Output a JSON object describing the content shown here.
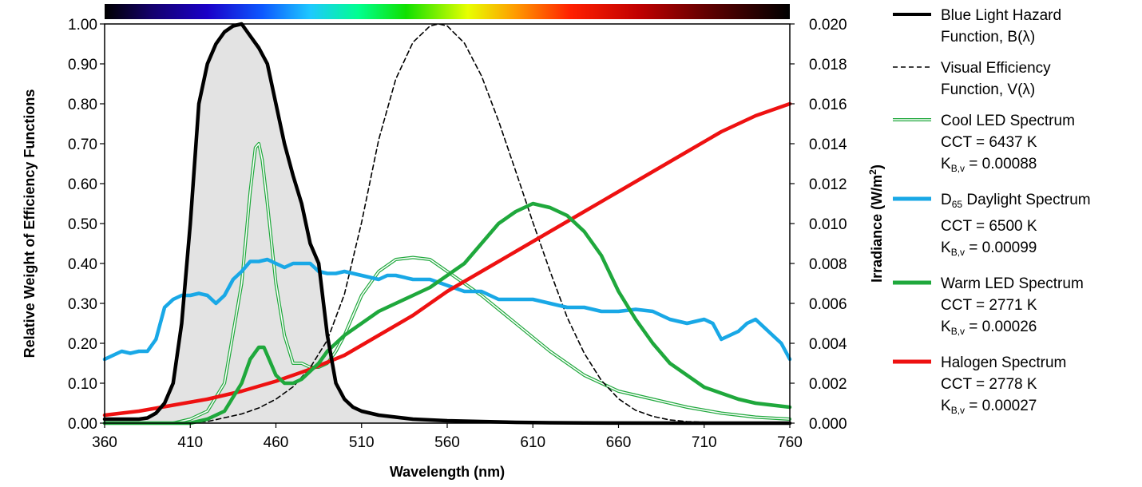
{
  "chart_data": {
    "type": "line",
    "xlabel": "Wavelength (nm)",
    "ylabel_left": "Relative Weight of Efficiency Functions",
    "ylabel_right_base": "Irradiance (W/m",
    "ylabel_right_sup": "2",
    "ylabel_right_end": ")",
    "xlim": [
      360,
      760
    ],
    "ylim_left": [
      0,
      1.0
    ],
    "ylim_right": [
      0,
      0.02
    ],
    "x_ticks": [
      "360",
      "410",
      "460",
      "510",
      "560",
      "610",
      "660",
      "710",
      "760"
    ],
    "y_left_ticks": [
      "0.00",
      "0.10",
      "0.20",
      "0.30",
      "0.40",
      "0.50",
      "0.60",
      "0.70",
      "0.80",
      "0.90",
      "1.00"
    ],
    "y_right_ticks": [
      "0.000",
      "0.002",
      "0.004",
      "0.006",
      "0.008",
      "0.010",
      "0.012",
      "0.014",
      "0.016",
      "0.018",
      "0.020"
    ],
    "grid": false,
    "legend_position": "right",
    "spectrum_bar": true,
    "series": [
      {
        "name": "Blue Light Hazard Function, B(λ)",
        "color": "#000000",
        "style": "solid-thick",
        "fill": "#e3e3e3",
        "x": [
          360,
          370,
          380,
          385,
          390,
          395,
          400,
          405,
          410,
          415,
          420,
          425,
          430,
          435,
          440,
          445,
          450,
          455,
          460,
          465,
          470,
          475,
          480,
          485,
          490,
          495,
          500,
          505,
          510,
          520,
          530,
          540,
          550,
          560,
          580,
          600,
          620,
          640,
          660,
          700,
          760
        ],
        "y": [
          0.01,
          0.01,
          0.01,
          0.013,
          0.025,
          0.05,
          0.1,
          0.25,
          0.5,
          0.8,
          0.9,
          0.95,
          0.98,
          0.995,
          1.0,
          0.97,
          0.94,
          0.9,
          0.8,
          0.7,
          0.62,
          0.55,
          0.45,
          0.4,
          0.22,
          0.1,
          0.06,
          0.04,
          0.03,
          0.02,
          0.015,
          0.01,
          0.008,
          0.006,
          0.004,
          0.002,
          0.001,
          0.0005,
          0.0003,
          0.0001,
          0.0
        ]
      },
      {
        "name": "Visual Efficiency Function, V(λ)",
        "color": "#000000",
        "style": "dashed",
        "x": [
          360,
          380,
          400,
          420,
          440,
          450,
          460,
          470,
          480,
          490,
          500,
          510,
          520,
          530,
          540,
          550,
          555,
          560,
          570,
          580,
          590,
          600,
          610,
          620,
          630,
          640,
          650,
          660,
          670,
          680,
          690,
          700,
          720,
          760
        ],
        "y": [
          0.0,
          0.0,
          0.0,
          0.004,
          0.023,
          0.038,
          0.06,
          0.091,
          0.139,
          0.208,
          0.323,
          0.503,
          0.71,
          0.862,
          0.954,
          0.995,
          1.0,
          0.995,
          0.952,
          0.87,
          0.757,
          0.631,
          0.503,
          0.381,
          0.265,
          0.175,
          0.107,
          0.061,
          0.032,
          0.017,
          0.008,
          0.004,
          0.001,
          0.0
        ]
      },
      {
        "name": "Cool LED Spectrum",
        "info1": "CCT = 6437 K",
        "info2_base": "K",
        "info2_sub": "B,v",
        "info2_end": " = 0.00088",
        "color": "#1fa83c",
        "style": "double",
        "x": [
          360,
          400,
          410,
          420,
          430,
          440,
          445,
          448,
          450,
          452,
          455,
          460,
          465,
          470,
          475,
          480,
          485,
          490,
          495,
          500,
          505,
          510,
          515,
          520,
          530,
          540,
          550,
          560,
          570,
          580,
          600,
          620,
          640,
          660,
          680,
          700,
          720,
          740,
          760
        ],
        "y": [
          0.0,
          0.0,
          0.01,
          0.03,
          0.1,
          0.35,
          0.58,
          0.69,
          0.7,
          0.66,
          0.55,
          0.35,
          0.22,
          0.15,
          0.15,
          0.14,
          0.14,
          0.15,
          0.18,
          0.22,
          0.27,
          0.32,
          0.35,
          0.38,
          0.41,
          0.415,
          0.41,
          0.38,
          0.35,
          0.32,
          0.25,
          0.18,
          0.12,
          0.08,
          0.06,
          0.04,
          0.025,
          0.015,
          0.01
        ]
      },
      {
        "name": "D65 Daylight Spectrum",
        "name_base": "D",
        "name_sub": "65",
        "name_end": " Daylight Spectrum",
        "info1": "CCT = 6500 K",
        "info2_base": "K",
        "info2_sub": "B,v",
        "info2_end": " = 0.00099",
        "color": "#19a8e6",
        "style": "solid-thick",
        "x": [
          360,
          365,
          370,
          375,
          380,
          385,
          390,
          395,
          400,
          405,
          410,
          415,
          420,
          425,
          430,
          435,
          440,
          445,
          450,
          455,
          460,
          465,
          470,
          475,
          480,
          485,
          490,
          495,
          500,
          510,
          520,
          525,
          530,
          540,
          550,
          560,
          570,
          580,
          590,
          600,
          610,
          620,
          630,
          640,
          650,
          660,
          670,
          680,
          690,
          700,
          710,
          715,
          720,
          725,
          730,
          735,
          740,
          745,
          750,
          755,
          760
        ],
        "y": [
          0.16,
          0.17,
          0.18,
          0.175,
          0.18,
          0.18,
          0.21,
          0.29,
          0.31,
          0.32,
          0.32,
          0.325,
          0.32,
          0.3,
          0.32,
          0.36,
          0.38,
          0.405,
          0.405,
          0.41,
          0.4,
          0.39,
          0.4,
          0.4,
          0.4,
          0.38,
          0.375,
          0.375,
          0.38,
          0.37,
          0.36,
          0.37,
          0.37,
          0.36,
          0.36,
          0.345,
          0.33,
          0.33,
          0.31,
          0.31,
          0.31,
          0.3,
          0.29,
          0.29,
          0.28,
          0.28,
          0.285,
          0.28,
          0.26,
          0.25,
          0.26,
          0.25,
          0.21,
          0.22,
          0.23,
          0.25,
          0.26,
          0.24,
          0.22,
          0.2,
          0.16
        ]
      },
      {
        "name": "Warm LED Spectrum",
        "info1": "CCT = 2771 K",
        "info2_base": "K",
        "info2_sub": "B,v",
        "info2_end": " = 0.00026",
        "color": "#1fa83c",
        "style": "solid-thick",
        "x": [
          360,
          410,
          420,
          430,
          440,
          445,
          450,
          453,
          455,
          460,
          465,
          470,
          475,
          480,
          485,
          490,
          500,
          510,
          520,
          530,
          540,
          550,
          560,
          570,
          580,
          590,
          600,
          610,
          620,
          630,
          640,
          650,
          660,
          670,
          680,
          690,
          700,
          710,
          720,
          730,
          740,
          750,
          760
        ],
        "y": [
          0.0,
          0.0,
          0.01,
          0.03,
          0.1,
          0.16,
          0.19,
          0.19,
          0.17,
          0.12,
          0.1,
          0.1,
          0.11,
          0.13,
          0.15,
          0.18,
          0.22,
          0.25,
          0.28,
          0.3,
          0.32,
          0.34,
          0.37,
          0.4,
          0.45,
          0.5,
          0.53,
          0.55,
          0.54,
          0.52,
          0.48,
          0.42,
          0.33,
          0.26,
          0.2,
          0.15,
          0.12,
          0.09,
          0.075,
          0.06,
          0.05,
          0.045,
          0.04
        ]
      },
      {
        "name": "Halogen Spectrum",
        "info1": "CCT = 2778 K",
        "info2_base": "K",
        "info2_sub": "B,v",
        "info2_end": " = 0.00027",
        "color": "#ee1111",
        "style": "solid-thick",
        "x": [
          360,
          380,
          400,
          420,
          440,
          460,
          480,
          500,
          520,
          540,
          560,
          580,
          600,
          620,
          640,
          660,
          680,
          700,
          720,
          740,
          760
        ],
        "y": [
          0.02,
          0.03,
          0.045,
          0.06,
          0.08,
          0.105,
          0.135,
          0.17,
          0.22,
          0.27,
          0.33,
          0.38,
          0.43,
          0.48,
          0.53,
          0.58,
          0.63,
          0.68,
          0.73,
          0.77,
          0.8
        ]
      }
    ]
  }
}
